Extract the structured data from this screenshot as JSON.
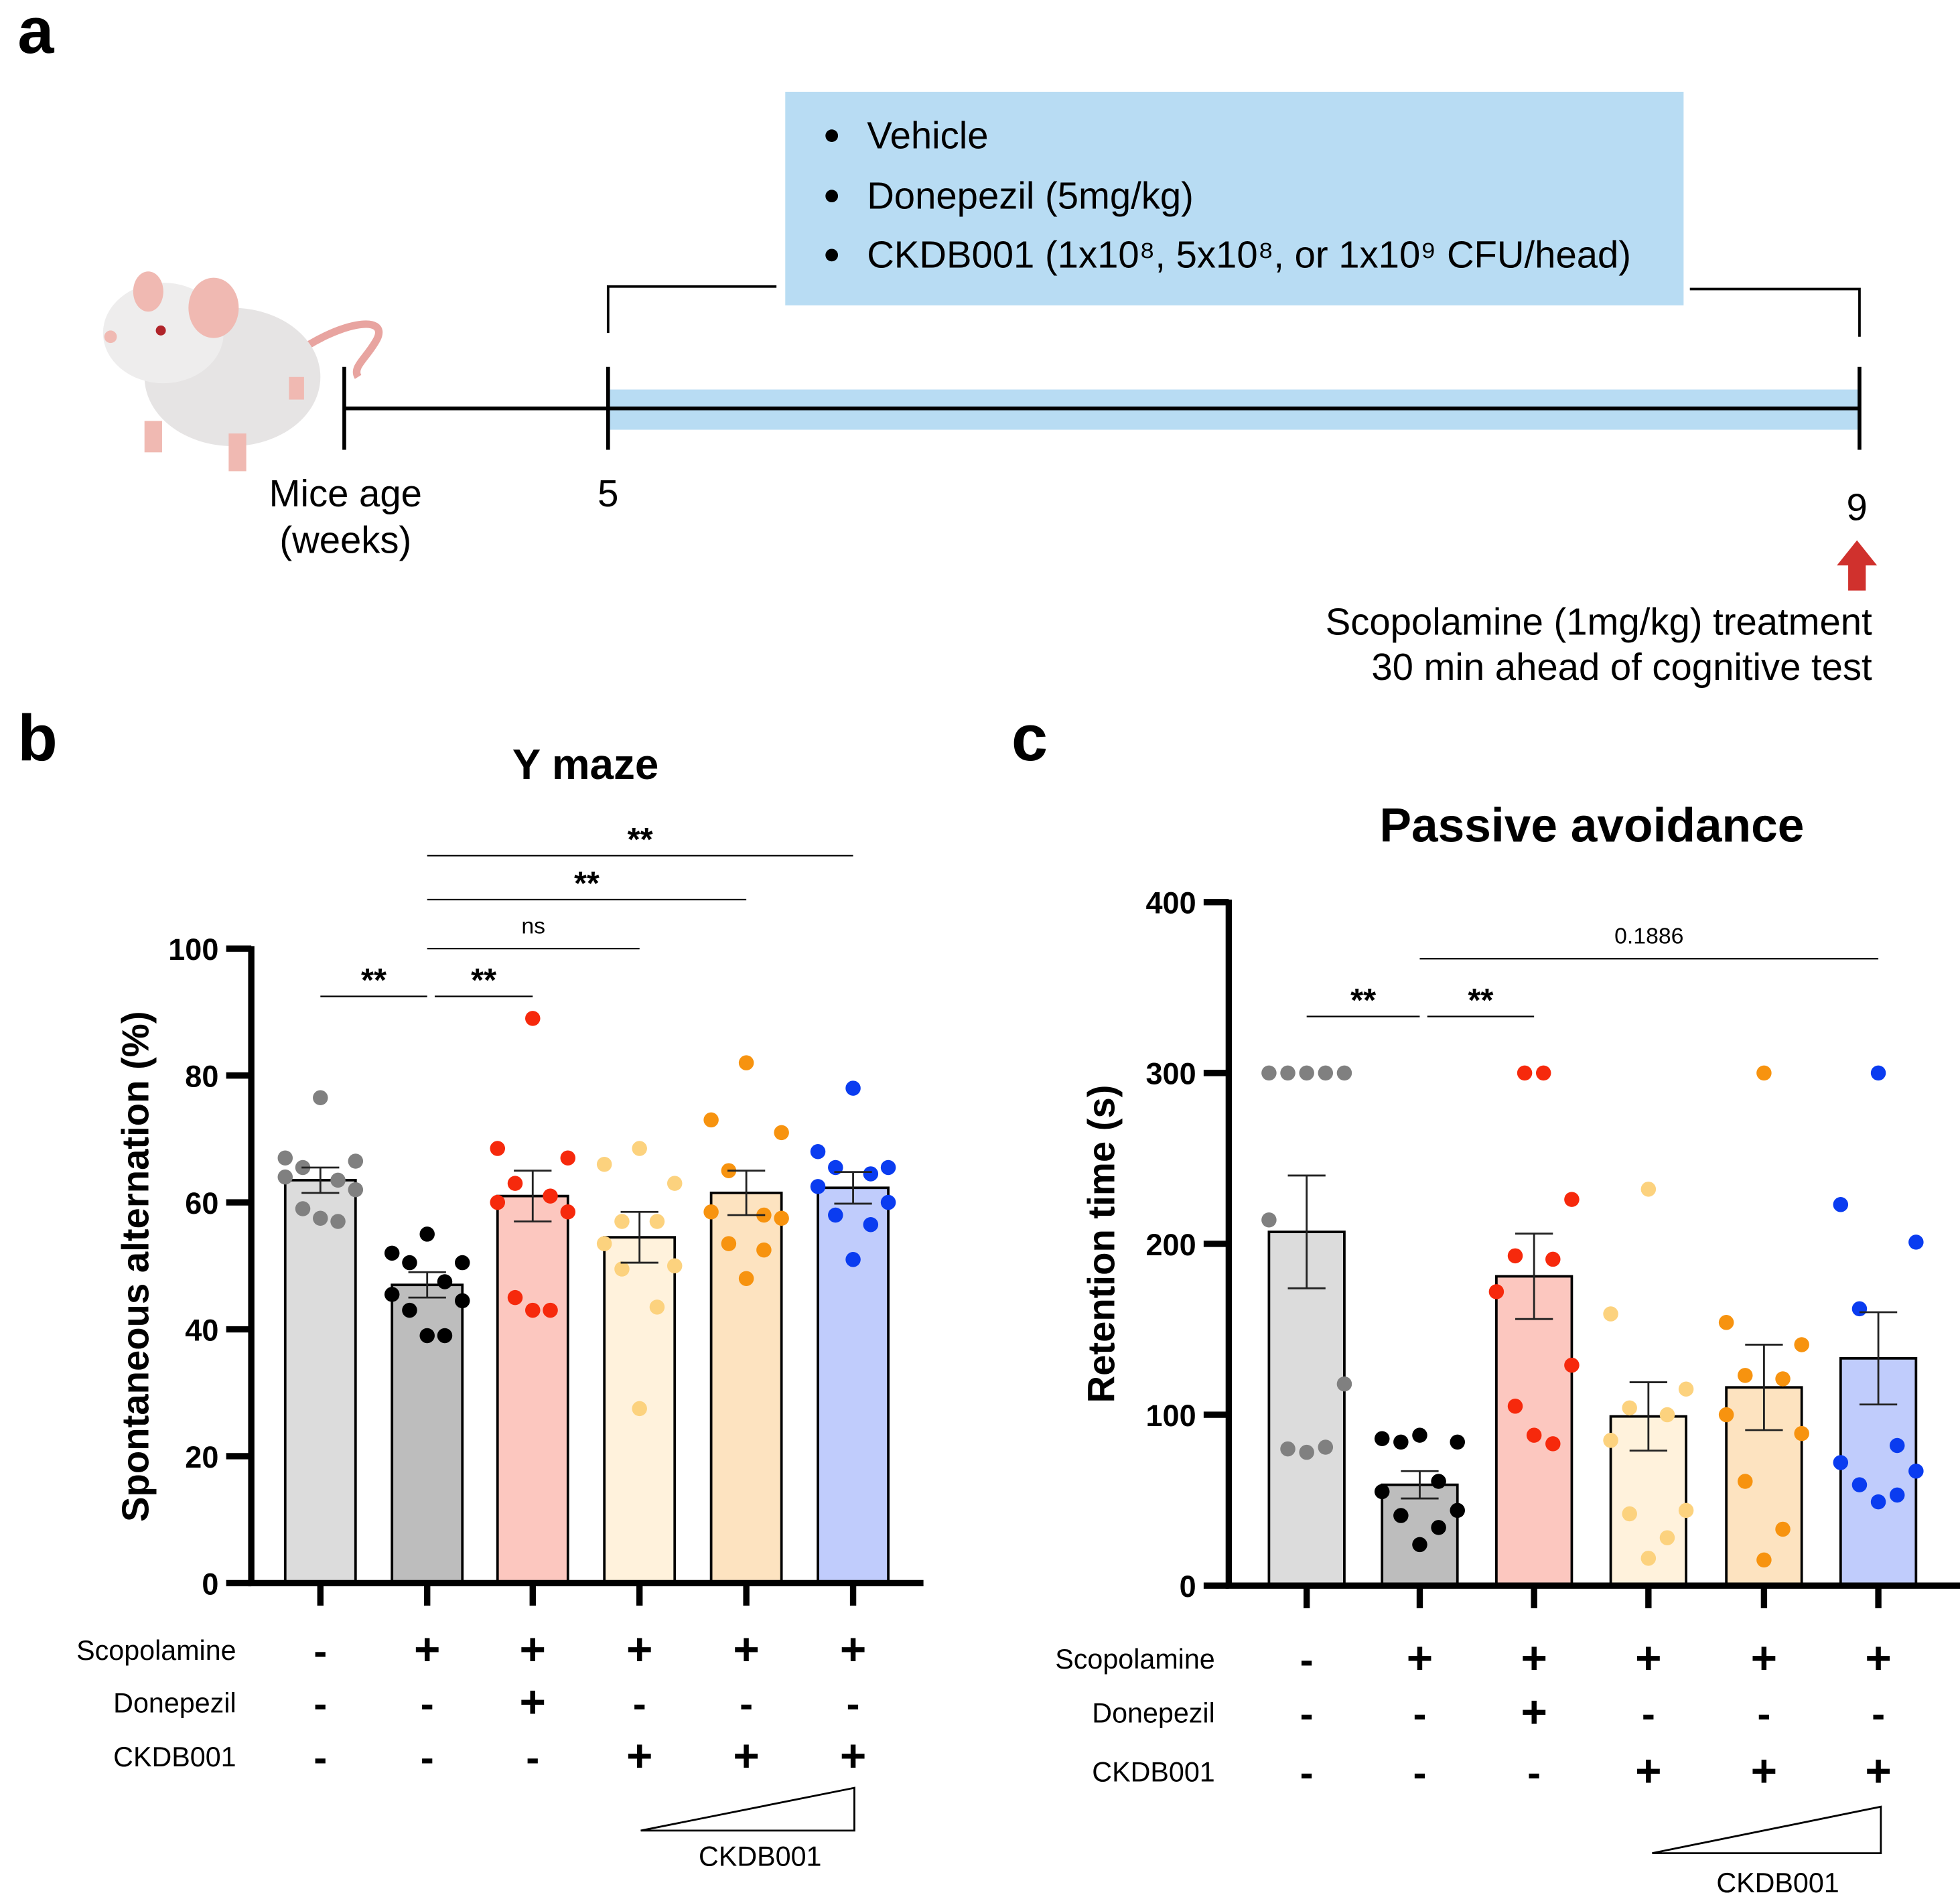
{
  "panel_a": {
    "letter": "a",
    "treatments": [
      "Vehicle",
      "Donepezil (5mg/kg)",
      "CKDB001 (1x10⁸, 5x10⁸, or 1x10⁹ CFU/head)"
    ],
    "axis_label_line1": "Mice age",
    "axis_label_line2": "(weeks)",
    "tick_start": "5",
    "tick_end": "9",
    "note_line1": "Scopolamine (1mg/kg) treatment",
    "note_line2": "30 min ahead of cognitive test",
    "colors": {
      "band": "#b8dcf3",
      "arrow": "#d0312d"
    }
  },
  "chart_data": [
    {
      "type": "bar",
      "letter": "b",
      "title": "Y maze",
      "ylabel": "Spontaneous alternation (%)",
      "ylim": [
        0,
        100
      ],
      "yticks": [
        "0",
        "20",
        "40",
        "60",
        "80",
        "100"
      ],
      "means": [
        63.5,
        47,
        61,
        54.5,
        61.5,
        62.3
      ],
      "sem": [
        2,
        2,
        4,
        4,
        3.5,
        2.5
      ],
      "points": [
        [
          76.5,
          67,
          66.5,
          65.5,
          63.5,
          64,
          62,
          59,
          57,
          57.5
        ],
        [
          55,
          52,
          50.5,
          50.5,
          47.5,
          45.5,
          44.5,
          43,
          39,
          39
        ],
        [
          89,
          68.5,
          67,
          63,
          61,
          60,
          58.5,
          45,
          43,
          43
        ],
        [
          68.5,
          66,
          63,
          57,
          57,
          53.5,
          50,
          49.5,
          43.5,
          27.5
        ],
        [
          82,
          73,
          71,
          65,
          58,
          58.5,
          57.5,
          53.5,
          52.5,
          48
        ],
        [
          78,
          68,
          65.5,
          65.5,
          64.5,
          62.5,
          60,
          58,
          56.5,
          51
        ]
      ],
      "significance": [
        {
          "from": 0,
          "to": 1,
          "label": "**",
          "level": 0
        },
        {
          "from": 1,
          "to": 2,
          "label": "**",
          "level": 0
        },
        {
          "from": 1,
          "to": 3,
          "label": "ns",
          "level": 1
        },
        {
          "from": 1,
          "to": 4,
          "label": "**",
          "level": 2
        },
        {
          "from": 1,
          "to": 5,
          "label": "**",
          "level": 3
        }
      ],
      "conditions": [
        {
          "name": "Scopolamine",
          "values": [
            "-",
            "+",
            "+",
            "+",
            "+",
            "+"
          ]
        },
        {
          "name": "Donepezil",
          "values": [
            "-",
            "-",
            "+",
            "-",
            "-",
            "-"
          ]
        },
        {
          "name": "CKDB001",
          "values": [
            "-",
            "-",
            "-",
            "+",
            "+",
            "+"
          ]
        }
      ],
      "gradient_label": "CKDB001"
    },
    {
      "type": "bar",
      "letter": "c",
      "title": "Passive avoidance",
      "ylabel": "Retention time (s)",
      "ylim": [
        0,
        400
      ],
      "yticks": [
        "0",
        "100",
        "200",
        "300",
        "400"
      ],
      "means": [
        207,
        59,
        181,
        99,
        116,
        133
      ],
      "sem": [
        33,
        8,
        25,
        20,
        25,
        27
      ],
      "points": [
        [
          300,
          300,
          300,
          300,
          300,
          214,
          118,
          80,
          81,
          78
        ],
        [
          88,
          86,
          84,
          84,
          61,
          55,
          44,
          41,
          34,
          24
        ],
        [
          300,
          300,
          226,
          193,
          191,
          172,
          129,
          105,
          83,
          88
        ],
        [
          232,
          159,
          115,
          104,
          100,
          85,
          44,
          42,
          28,
          16
        ],
        [
          300,
          154,
          141,
          123,
          121,
          100,
          89,
          61,
          33,
          15
        ],
        [
          300,
          223,
          201,
          162,
          82,
          72,
          67,
          59,
          53,
          49
        ]
      ],
      "significance": [
        {
          "from": 0,
          "to": 1,
          "label": "**",
          "level": 0
        },
        {
          "from": 1,
          "to": 2,
          "label": "**",
          "level": 0
        },
        {
          "from": 1,
          "to": 5,
          "label": "0.1886",
          "level": 1
        }
      ],
      "conditions": [
        {
          "name": "Scopolamine",
          "values": [
            "-",
            "+",
            "+",
            "+",
            "+",
            "+"
          ]
        },
        {
          "name": "Donepezil",
          "values": [
            "-",
            "-",
            "+",
            "-",
            "-",
            "-"
          ]
        },
        {
          "name": "CKDB001",
          "values": [
            "-",
            "-",
            "-",
            "+",
            "+",
            "+"
          ]
        }
      ],
      "gradient_label": "CKDB001"
    }
  ],
  "group_colors": {
    "bars": [
      "#dcdcdc",
      "#bdbdbd",
      "#fcc7bf",
      "#fff2dc",
      "#fde3c0",
      "#c0ccfc"
    ],
    "points": [
      "#808080",
      "#000000",
      "#f6290c",
      "#fcd27e",
      "#f7930f",
      "#0a3cf0"
    ]
  }
}
